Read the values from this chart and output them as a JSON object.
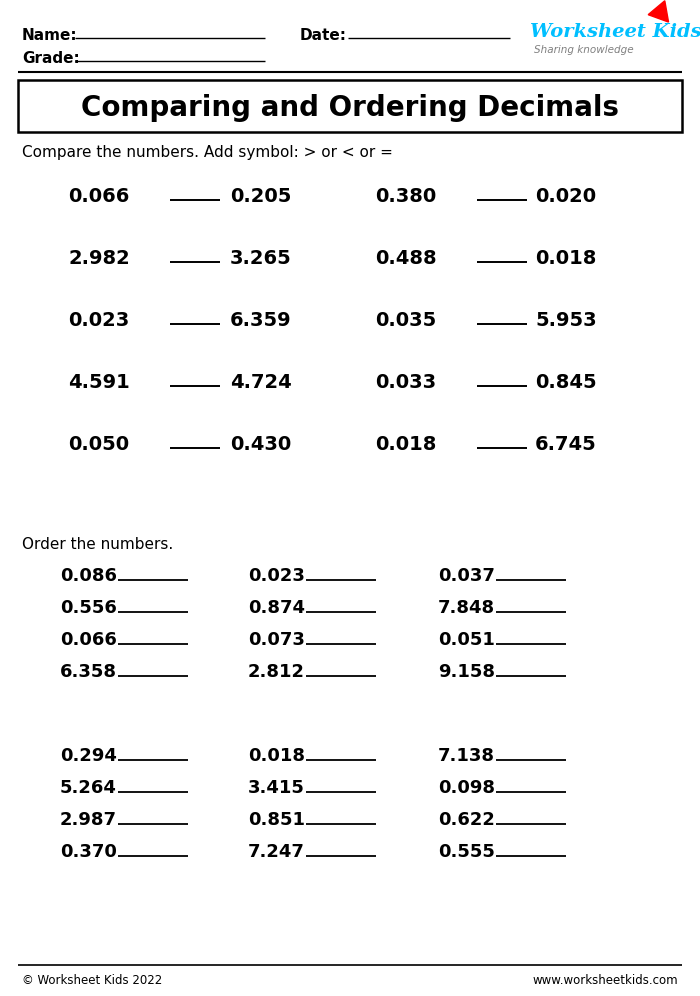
{
  "title": "Comparing and Ordering Decimals",
  "bg_color": "#ffffff",
  "name_label": "Name:",
  "date_label": "Date:",
  "grade_label": "Grade:",
  "compare_instruction": "Compare the numbers. Add symbol: > or < or =",
  "compare_pairs_left": [
    [
      "0.066",
      "0.205"
    ],
    [
      "2.982",
      "3.265"
    ],
    [
      "0.023",
      "6.359"
    ],
    [
      "4.591",
      "4.724"
    ],
    [
      "0.050",
      "0.430"
    ]
  ],
  "compare_pairs_right": [
    [
      "0.380",
      "0.020"
    ],
    [
      "0.488",
      "0.018"
    ],
    [
      "0.035",
      "5.953"
    ],
    [
      "0.033",
      "0.845"
    ],
    [
      "0.018",
      "6.745"
    ]
  ],
  "order_instruction": "Order the numbers.",
  "order_group1_col1": [
    "0.086",
    "0.556",
    "0.066",
    "6.358"
  ],
  "order_group1_col2": [
    "0.023",
    "0.874",
    "0.073",
    "2.812"
  ],
  "order_group1_col3": [
    "0.037",
    "7.848",
    "0.051",
    "9.158"
  ],
  "order_group2_col1": [
    "0.294",
    "5.264",
    "2.987",
    "0.370"
  ],
  "order_group2_col2": [
    "0.018",
    "3.415",
    "0.851",
    "7.247"
  ],
  "order_group2_col3": [
    "7.138",
    "0.098",
    "0.622",
    "0.555"
  ],
  "footer_left": "© Worksheet Kids 2022",
  "footer_right": "www.worksheetkids.com",
  "logo_text1": "Worksheet Kids",
  "logo_text2": "Sharing knowledge",
  "logo_color": "#00BFFF",
  "pencil_color": "#FF0000"
}
